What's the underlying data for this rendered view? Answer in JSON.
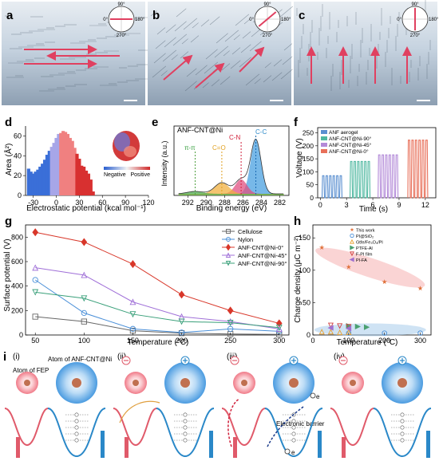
{
  "panel_labels": [
    "a",
    "b",
    "c",
    "d",
    "e",
    "f",
    "g",
    "h",
    "i"
  ],
  "compass": {
    "top": "90°",
    "right": "180°",
    "left": "0°",
    "bottom": "270°"
  },
  "chart_data": [
    {
      "panel": "d",
      "type": "bar",
      "xlabel": "Electrostatic potential (kcal mol⁻¹)",
      "ylabel": "Area (Å²)",
      "xticks": [
        -30,
        0,
        30,
        60,
        90,
        120
      ],
      "yticks": [
        0,
        20,
        40,
        60
      ],
      "xlim": [
        -40,
        120
      ],
      "ylim": [
        0,
        70
      ],
      "x": [
        -36,
        -33,
        -30,
        -27,
        -24,
        -21,
        -18,
        -15,
        -12,
        -9,
        -6,
        -3,
        0,
        3,
        6,
        9,
        12,
        15,
        18,
        21,
        24,
        27,
        30,
        33,
        36,
        39,
        42,
        45,
        48
      ],
      "values": [
        27,
        24,
        22,
        24,
        26,
        29,
        32,
        36,
        41,
        45,
        49,
        53,
        58,
        62,
        63,
        65,
        64,
        62,
        58,
        55,
        48,
        42,
        37,
        30,
        29,
        25,
        22,
        16,
        4
      ],
      "legend": {
        "negative": "Negative",
        "positive": "Positive"
      }
    },
    {
      "panel": "e",
      "type": "line",
      "title": "ANF-CNT@Ni",
      "xlabel": "Binding energy (eV)",
      "ylabel": "Intensity (a.u.)",
      "xticks": [
        292,
        290,
        288,
        286,
        284,
        282
      ],
      "xlim": [
        293.5,
        281
      ],
      "annotations": [
        "π-π",
        "C=O",
        "C-N",
        "C-C"
      ]
    },
    {
      "panel": "f",
      "type": "line",
      "xlabel": "Time (s)",
      "ylabel": "Voltage (V)",
      "xticks": [
        0,
        3,
        6,
        9,
        12
      ],
      "yticks": [
        0,
        50,
        100,
        150,
        200,
        250
      ],
      "ylim": [
        0,
        270
      ],
      "series": [
        {
          "name": "ANF aerogel",
          "color": "#5a8fd0",
          "peak": 85,
          "t_start": 0.2,
          "t_end": 2.6
        },
        {
          "name": "ANF-CNT@Ni-90°",
          "color": "#4fb8a0",
          "peak": 140,
          "t_start": 3.4,
          "t_end": 5.8
        },
        {
          "name": "ANF-CNT@Ni-45°",
          "color": "#b38ad8",
          "peak": 165,
          "t_start": 6.6,
          "t_end": 9.0
        },
        {
          "name": "ANF-CNT@Ni-0°",
          "color": "#e8705a",
          "peak": 222,
          "t_start": 10.0,
          "t_end": 12.4
        }
      ]
    },
    {
      "panel": "g",
      "type": "line",
      "xlabel": "Temperature (°C)",
      "ylabel": "Surface potential (V)",
      "x": [
        50,
        100,
        150,
        200,
        250,
        300
      ],
      "xticks": [
        50,
        100,
        150,
        200,
        250,
        300
      ],
      "yticks": [
        0,
        200,
        400,
        600,
        800
      ],
      "xlim": [
        40,
        310
      ],
      "ylim": [
        0,
        900
      ],
      "series": [
        {
          "name": "Cellulose",
          "values": [
            150,
            110,
            35,
            15,
            8,
            5
          ],
          "color": "#666666",
          "marker": "square"
        },
        {
          "name": "Nylon",
          "values": [
            450,
            180,
            50,
            20,
            50,
            30
          ],
          "color": "#4a8fd8",
          "marker": "circle"
        },
        {
          "name": "ANF-CNT@Ni-0°",
          "values": [
            840,
            760,
            580,
            330,
            200,
            95
          ],
          "color": "#d8372a",
          "marker": "diamond"
        },
        {
          "name": "ANF-CNT@Ni-45°",
          "values": [
            550,
            490,
            270,
            150,
            110,
            50
          ],
          "color": "#a070d8",
          "marker": "triangle-up"
        },
        {
          "name": "ANF-CNT@Ni-90°",
          "values": [
            350,
            300,
            170,
            110,
            100,
            60
          ],
          "color": "#3aa07a",
          "marker": "triangle-down"
        }
      ]
    },
    {
      "panel": "h",
      "type": "scatter",
      "xlabel": "Temperature (°C)",
      "ylabel": "Charge density (μC m⁻²)",
      "xticks": [
        0,
        100,
        200,
        300
      ],
      "yticks": [
        0,
        50,
        100,
        150
      ],
      "xlim": [
        0,
        330
      ],
      "ylim": [
        0,
        170
      ],
      "series": [
        {
          "name": "This work",
          "color": "#e0703a",
          "marker": "star",
          "x": [
            25,
            100,
            200,
            300
          ],
          "y": [
            135,
            105,
            82,
            72
          ]
        },
        {
          "name": "PI@SiO₂",
          "color": "#4a8fd8",
          "marker": "circle",
          "x": [
            100,
            200,
            300
          ],
          "y": [
            3,
            3,
            3
          ]
        },
        {
          "name": "Gtfe/Fe₃O₄/PI",
          "color": "#e8a030",
          "marker": "triangle-up",
          "x": [
            25,
            50,
            75,
            100
          ],
          "y": [
            5,
            5,
            4,
            4
          ]
        },
        {
          "name": "PTFE-Al",
          "color": "#4aa070",
          "marker": "triangle-right",
          "x": [
            100,
            125,
            150
          ],
          "y": [
            14,
            13,
            12
          ]
        },
        {
          "name": "F-PI film",
          "color": "#d04040",
          "marker": "triangle-down",
          "x": [
            50,
            75,
            100
          ],
          "y": [
            15,
            14,
            13
          ]
        },
        {
          "name": "PI-FA",
          "color": "#a070d0",
          "marker": "triangle-left",
          "x": [
            50,
            100
          ],
          "y": [
            11,
            10
          ]
        }
      ]
    }
  ],
  "panel_i": {
    "stages": [
      "(i)",
      "(ii)",
      "(iii)",
      "(iv)"
    ],
    "fep_label": "Atom of FEP",
    "anf_label": "Atom of ANF-CNT@Ni",
    "barrier_label": "Electronic barrier",
    "electron": "e"
  },
  "colors": {
    "red": "#e05a6a",
    "blue": "#2a88c8",
    "fep": "#f07a88",
    "anf": "#4a9be0"
  }
}
